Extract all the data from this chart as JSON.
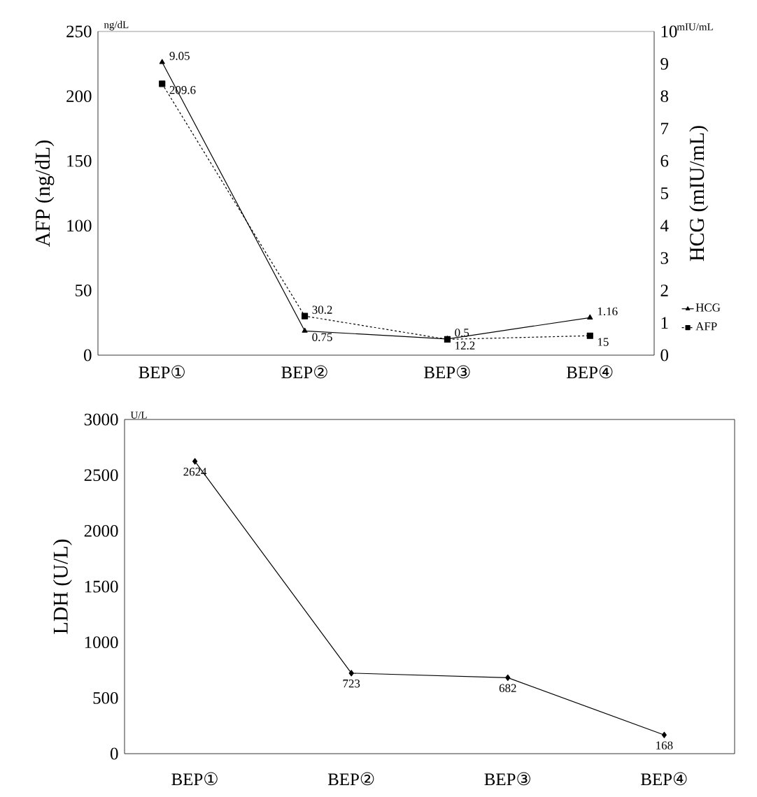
{
  "chart_data": [
    {
      "type": "line",
      "categories": [
        "BEP①",
        "BEP②",
        "BEP③",
        "BEP④"
      ],
      "ylabel": "AFP (ng/dL)",
      "y2label": "HCG (mIU/mL)",
      "ylim": [
        0,
        250
      ],
      "yticks": [
        0,
        50,
        100,
        150,
        200,
        250
      ],
      "y2lim": [
        0,
        10
      ],
      "y2ticks": [
        0,
        1,
        2,
        3,
        4,
        5,
        6,
        7,
        8,
        9,
        10
      ],
      "series": [
        {
          "name": "HCG",
          "color": "#000000",
          "values": [
            9.05,
            0.75,
            0.5,
            1.16
          ],
          "axis": "y2",
          "marker": "triangle",
          "line_style": "solid"
        },
        {
          "name": "AFP",
          "color": "#000000",
          "values": [
            209.6,
            30.2,
            12.2,
            15
          ],
          "marker": "square",
          "line_style": "dashed"
        }
      ],
      "data_labels": true,
      "legend": "right",
      "annotations": [
        "ng/dL",
        "mIU/mL"
      ]
    },
    {
      "type": "line",
      "categories": [
        "BEP①",
        "BEP②",
        "BEP③",
        "BEP④"
      ],
      "ylabel": "LDH (U/L)",
      "ylim": [
        0,
        3000
      ],
      "yticks": [
        0,
        500,
        1000,
        1500,
        2000,
        2500,
        3000
      ],
      "series": [
        {
          "color": "#000000",
          "values": [
            2624,
            723,
            682,
            168
          ],
          "marker": "diamond",
          "line_style": "solid"
        }
      ],
      "data_labels": true,
      "annotations": [
        "U/L"
      ]
    }
  ]
}
